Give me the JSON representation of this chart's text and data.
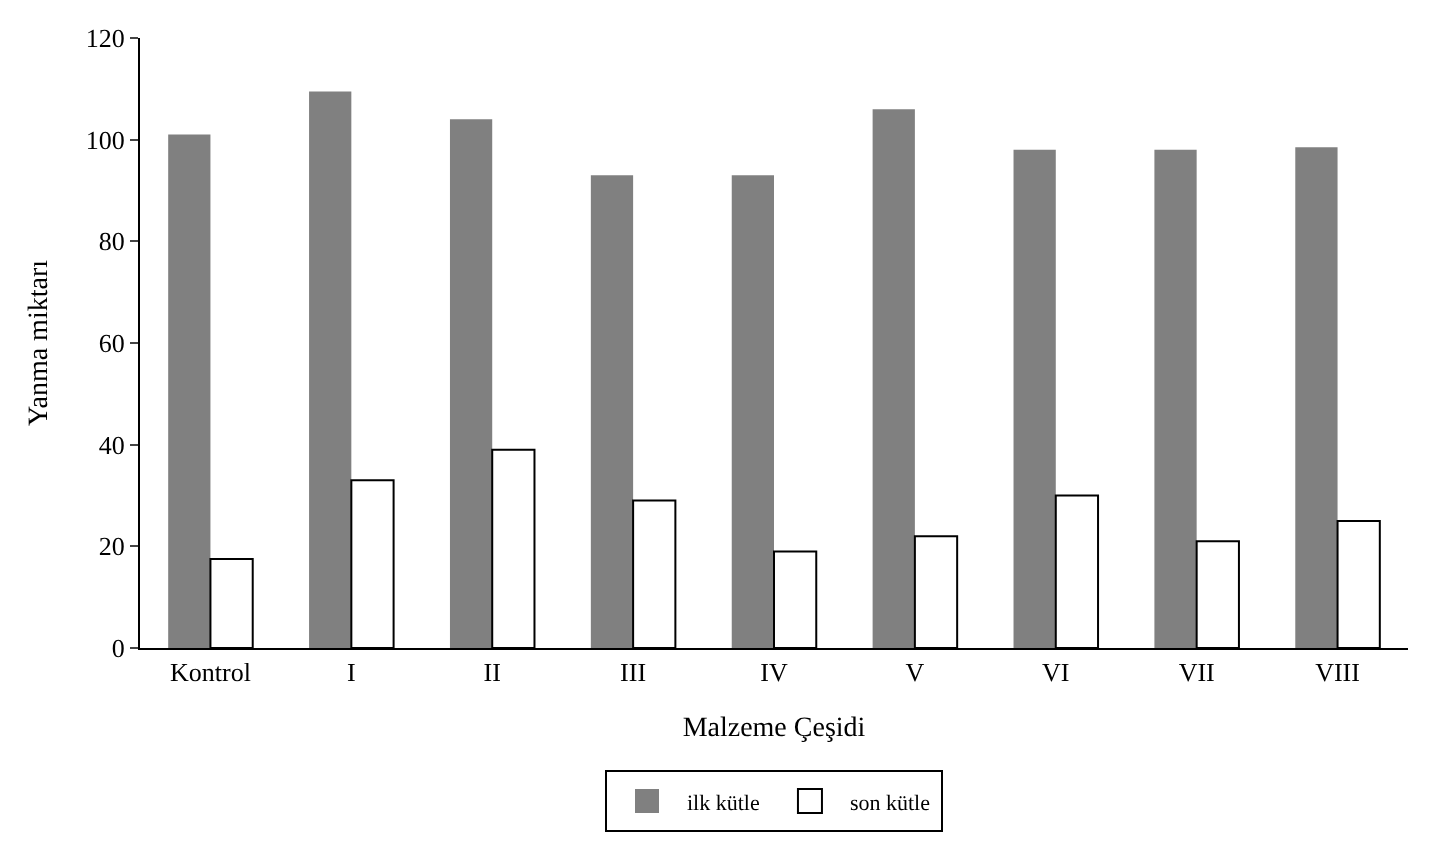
{
  "chart_data": {
    "type": "bar",
    "xlabel": "Malzeme Çeşidi",
    "ylabel": "Yanma miktarı",
    "categories": [
      "Kontrol",
      "I",
      "II",
      "III",
      "IV",
      "V",
      "VI",
      "VII",
      "VIII"
    ],
    "series": [
      {
        "name": "ilk kütle",
        "color": "#808080",
        "values": [
          101,
          109.5,
          104,
          93,
          93,
          106,
          98,
          98,
          98.5
        ]
      },
      {
        "name": "son kütle",
        "color": "#ffffff",
        "values": [
          17.5,
          33,
          39,
          29,
          19,
          22,
          30,
          21,
          25
        ]
      }
    ],
    "ylim": [
      0,
      120
    ],
    "yticks": [
      0,
      20,
      40,
      60,
      80,
      100,
      120
    ],
    "legend": "bottom"
  }
}
